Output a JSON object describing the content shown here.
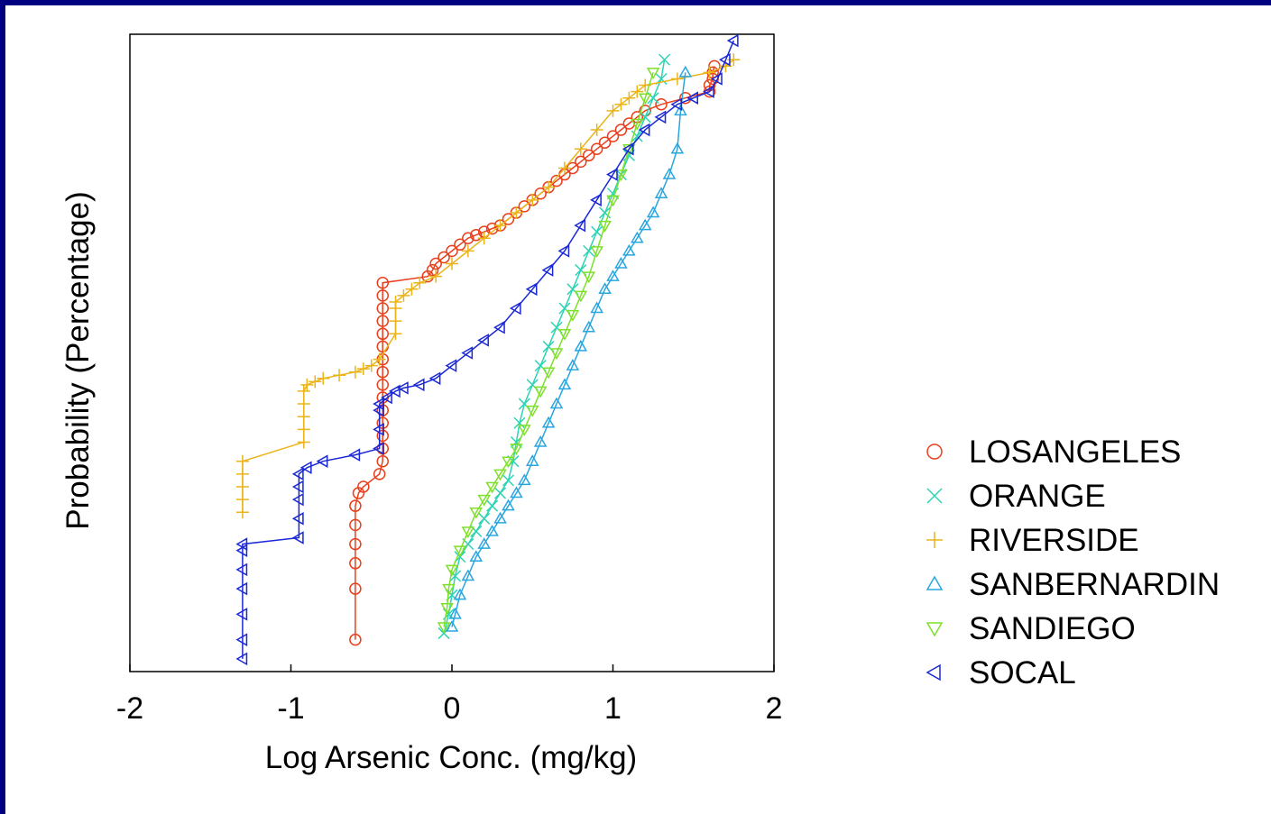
{
  "chart_data": {
    "type": "scatter",
    "xlabel": "Log Arsenic Conc. (mg/kg)",
    "ylabel": "Probability (Percentage)",
    "xlim": [
      -2,
      2
    ],
    "x_ticks": [
      "-2",
      "-1",
      "0",
      "1",
      "2"
    ],
    "ylim": [
      0,
      100
    ],
    "y_ticks": [],
    "grid": false,
    "legend_position": "right",
    "series": [
      {
        "name": "LOSANGELES",
        "marker": "circle",
        "color": "#e8401c",
        "x": [
          -0.6,
          -0.6,
          -0.6,
          -0.6,
          -0.6,
          -0.6,
          -0.58,
          -0.55,
          -0.45,
          -0.43,
          -0.43,
          -0.43,
          -0.43,
          -0.43,
          -0.43,
          -0.43,
          -0.43,
          -0.43,
          -0.43,
          -0.43,
          -0.43,
          -0.43,
          -0.43,
          -0.43,
          -0.15,
          -0.12,
          -0.1,
          -0.05,
          0.0,
          0.05,
          0.1,
          0.15,
          0.2,
          0.25,
          0.3,
          0.35,
          0.4,
          0.45,
          0.5,
          0.55,
          0.6,
          0.65,
          0.7,
          0.75,
          0.8,
          0.85,
          0.9,
          0.95,
          1.0,
          1.05,
          1.1,
          1.15,
          1.2,
          1.3,
          1.45,
          1.6,
          1.6,
          1.62,
          1.62,
          1.63
        ],
        "y": [
          5,
          13,
          17,
          20,
          23,
          26,
          28,
          29,
          31,
          33,
          35,
          37,
          39,
          41,
          43,
          45,
          47,
          49,
          51,
          53,
          55,
          57,
          59,
          61,
          62,
          63,
          64,
          65,
          66,
          67,
          68,
          68.5,
          69,
          69.5,
          70,
          71,
          72,
          73,
          74,
          75,
          76,
          77,
          78,
          79,
          80,
          81,
          82,
          83,
          84,
          85,
          86,
          87,
          88,
          89,
          90,
          91,
          92,
          93,
          94,
          95
        ]
      },
      {
        "name": "ORANGE",
        "marker": "x",
        "color": "#2ed3b4",
        "x": [
          -0.05,
          -0.02,
          0.0,
          0.02,
          0.05,
          0.1,
          0.15,
          0.2,
          0.25,
          0.3,
          0.35,
          0.38,
          0.4,
          0.42,
          0.45,
          0.5,
          0.55,
          0.6,
          0.65,
          0.7,
          0.75,
          0.8,
          0.85,
          0.9,
          0.95,
          1.0,
          1.05,
          1.1,
          1.15,
          1.2,
          1.25,
          1.3,
          1.32
        ],
        "y": [
          6,
          9,
          12,
          15,
          18,
          20,
          22,
          24,
          26,
          28,
          30,
          33,
          36,
          39,
          42,
          45,
          48,
          51,
          54,
          57,
          60,
          63,
          66,
          69,
          72,
          75,
          78,
          81,
          84,
          87,
          90,
          93,
          96
        ]
      },
      {
        "name": "RIVERSIDE",
        "marker": "plus",
        "color": "#eab41a",
        "x": [
          -1.3,
          -1.3,
          -1.3,
          -1.3,
          -1.3,
          -0.92,
          -0.92,
          -0.92,
          -0.92,
          -0.92,
          -0.9,
          -0.85,
          -0.8,
          -0.7,
          -0.6,
          -0.55,
          -0.5,
          -0.45,
          -0.35,
          -0.35,
          -0.35,
          -0.35,
          -0.3,
          -0.25,
          -0.2,
          -0.1,
          0.0,
          0.1,
          0.2,
          0.3,
          0.4,
          0.5,
          0.6,
          0.7,
          0.8,
          0.9,
          1.0,
          1.05,
          1.1,
          1.15,
          1.2,
          1.4,
          1.6,
          1.7,
          1.75
        ],
        "y": [
          25,
          27,
          29,
          31,
          33,
          36,
          38,
          40,
          42,
          44,
          45,
          45.5,
          46,
          46.5,
          47,
          47.5,
          48,
          49,
          53,
          55,
          57,
          58,
          59,
          60,
          61,
          62,
          64,
          66,
          68,
          70,
          72,
          74,
          76,
          79,
          82,
          85,
          88,
          89,
          90,
          91,
          92,
          93,
          94,
          95,
          96
        ]
      },
      {
        "name": "SANBERNARDIN",
        "marker": "triangle-up",
        "color": "#2aa6df",
        "x": [
          0.0,
          0.02,
          0.05,
          0.1,
          0.15,
          0.2,
          0.25,
          0.3,
          0.35,
          0.4,
          0.45,
          0.5,
          0.55,
          0.6,
          0.65,
          0.7,
          0.75,
          0.8,
          0.85,
          0.9,
          0.95,
          1.0,
          1.05,
          1.1,
          1.15,
          1.2,
          1.25,
          1.3,
          1.35,
          1.4,
          1.42,
          1.45
        ],
        "y": [
          7,
          9,
          12,
          15,
          18,
          20,
          22,
          24,
          26,
          28,
          30,
          33,
          36,
          39,
          42,
          45,
          48,
          51,
          54,
          57,
          60,
          62,
          64,
          66,
          68,
          70,
          72,
          75,
          78,
          82,
          88,
          94
        ]
      },
      {
        "name": "SANDIEGO",
        "marker": "triangle-down",
        "color": "#7ee02a",
        "x": [
          -0.05,
          -0.03,
          -0.02,
          0.0,
          0.05,
          0.1,
          0.15,
          0.2,
          0.25,
          0.3,
          0.35,
          0.4,
          0.45,
          0.5,
          0.55,
          0.6,
          0.65,
          0.7,
          0.75,
          0.8,
          0.85,
          0.9,
          0.95,
          1.0,
          1.05,
          1.1,
          1.15,
          1.2,
          1.25
        ],
        "y": [
          7,
          10,
          13,
          16,
          19,
          22,
          25,
          27,
          29,
          31,
          33,
          35,
          38,
          41,
          44,
          47,
          50,
          53,
          56,
          59,
          62,
          66,
          70,
          74,
          78,
          82,
          86,
          90,
          94
        ]
      },
      {
        "name": "SOCAL",
        "marker": "triangle-left",
        "color": "#1a28d6",
        "x": [
          -1.3,
          -1.3,
          -1.3,
          -1.3,
          -1.3,
          -1.3,
          -1.3,
          -0.95,
          -0.95,
          -0.95,
          -0.95,
          -0.95,
          -0.9,
          -0.8,
          -0.6,
          -0.45,
          -0.45,
          -0.45,
          -0.45,
          -0.4,
          -0.35,
          -0.3,
          -0.2,
          -0.1,
          0.0,
          0.1,
          0.2,
          0.3,
          0.4,
          0.5,
          0.6,
          0.7,
          0.8,
          0.9,
          1.0,
          1.1,
          1.2,
          1.3,
          1.4,
          1.5,
          1.6,
          1.65,
          1.7,
          1.75
        ],
        "y": [
          2,
          5,
          9,
          13,
          16,
          19,
          20,
          21,
          24,
          27,
          29,
          31,
          32,
          33,
          34,
          35,
          38,
          41,
          42,
          43,
          44,
          44.5,
          45,
          46,
          48,
          50,
          52,
          54,
          57,
          60,
          63,
          66,
          70,
          74,
          78,
          82,
          85,
          87,
          89,
          90,
          91,
          93,
          96,
          99
        ]
      }
    ]
  }
}
